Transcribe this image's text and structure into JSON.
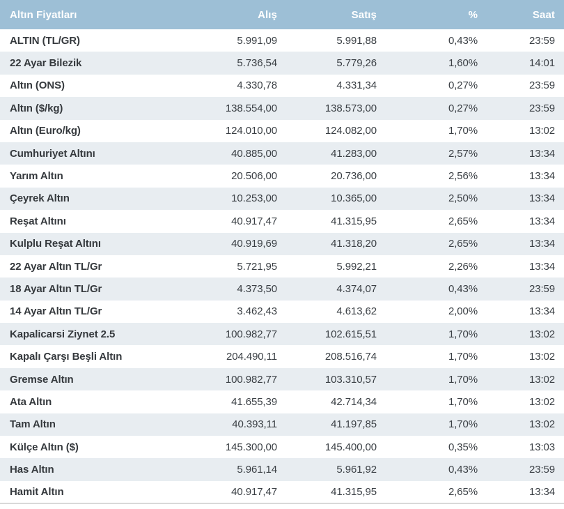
{
  "colors": {
    "header_bg": "#9dbfd6",
    "row_alt_bg": "#e8edf1",
    "row_bg": "#ffffff",
    "header_text": "#ffffff",
    "body_text": "#3a3f44",
    "bottom_border": "#d9d9d9"
  },
  "table": {
    "header": {
      "title": "Altın Fiyatları",
      "col_buy": "Alış",
      "col_sell": "Satış",
      "col_pct": "%",
      "col_time": "Saat"
    },
    "rows": [
      {
        "name": "ALTIN (TL/GR)",
        "alis": "5.991,09",
        "satis": "5.991,88",
        "pct": "0,43%",
        "saat": "23:59"
      },
      {
        "name": "22 Ayar Bilezik",
        "alis": "5.736,54",
        "satis": "5.779,26",
        "pct": "1,60%",
        "saat": "14:01"
      },
      {
        "name": "Altın (ONS)",
        "alis": "4.330,78",
        "satis": "4.331,34",
        "pct": "0,27%",
        "saat": "23:59"
      },
      {
        "name": "Altın ($/kg)",
        "alis": "138.554,00",
        "satis": "138.573,00",
        "pct": "0,27%",
        "saat": "23:59"
      },
      {
        "name": "Altın (Euro/kg)",
        "alis": "124.010,00",
        "satis": "124.082,00",
        "pct": "1,70%",
        "saat": "13:02"
      },
      {
        "name": "Cumhuriyet Altını",
        "alis": "40.885,00",
        "satis": "41.283,00",
        "pct": "2,57%",
        "saat": "13:34"
      },
      {
        "name": "Yarım Altın",
        "alis": "20.506,00",
        "satis": "20.736,00",
        "pct": "2,56%",
        "saat": "13:34"
      },
      {
        "name": "Çeyrek Altın",
        "alis": "10.253,00",
        "satis": "10.365,00",
        "pct": "2,50%",
        "saat": "13:34"
      },
      {
        "name": "Reşat Altını",
        "alis": "40.917,47",
        "satis": "41.315,95",
        "pct": "2,65%",
        "saat": "13:34"
      },
      {
        "name": "Kulplu Reşat Altını",
        "alis": "40.919,69",
        "satis": "41.318,20",
        "pct": "2,65%",
        "saat": "13:34"
      },
      {
        "name": "22 Ayar Altın TL/Gr",
        "alis": "5.721,95",
        "satis": "5.992,21",
        "pct": "2,26%",
        "saat": "13:34"
      },
      {
        "name": "18 Ayar Altın TL/Gr",
        "alis": "4.373,50",
        "satis": "4.374,07",
        "pct": "0,43%",
        "saat": "23:59"
      },
      {
        "name": "14 Ayar Altın TL/Gr",
        "alis": "3.462,43",
        "satis": "4.613,62",
        "pct": "2,00%",
        "saat": "13:34"
      },
      {
        "name": "Kapalicarsi Ziynet 2.5",
        "alis": "100.982,77",
        "satis": "102.615,51",
        "pct": "1,70%",
        "saat": "13:02"
      },
      {
        "name": "Kapalı Çarşı Beşli Altın",
        "alis": "204.490,11",
        "satis": "208.516,74",
        "pct": "1,70%",
        "saat": "13:02"
      },
      {
        "name": "Gremse Altın",
        "alis": "100.982,77",
        "satis": "103.310,57",
        "pct": "1,70%",
        "saat": "13:02"
      },
      {
        "name": "Ata Altın",
        "alis": "41.655,39",
        "satis": "42.714,34",
        "pct": "1,70%",
        "saat": "13:02"
      },
      {
        "name": "Tam Altın",
        "alis": "40.393,11",
        "satis": "41.197,85",
        "pct": "1,70%",
        "saat": "13:02"
      },
      {
        "name": "Külçe Altın ($)",
        "alis": "145.300,00",
        "satis": "145.400,00",
        "pct": "0,35%",
        "saat": "13:03"
      },
      {
        "name": "Has Altın",
        "alis": "5.961,14",
        "satis": "5.961,92",
        "pct": "0,43%",
        "saat": "23:59"
      },
      {
        "name": "Hamit Altın",
        "alis": "40.917,47",
        "satis": "41.315,95",
        "pct": "2,65%",
        "saat": "13:34"
      }
    ]
  }
}
